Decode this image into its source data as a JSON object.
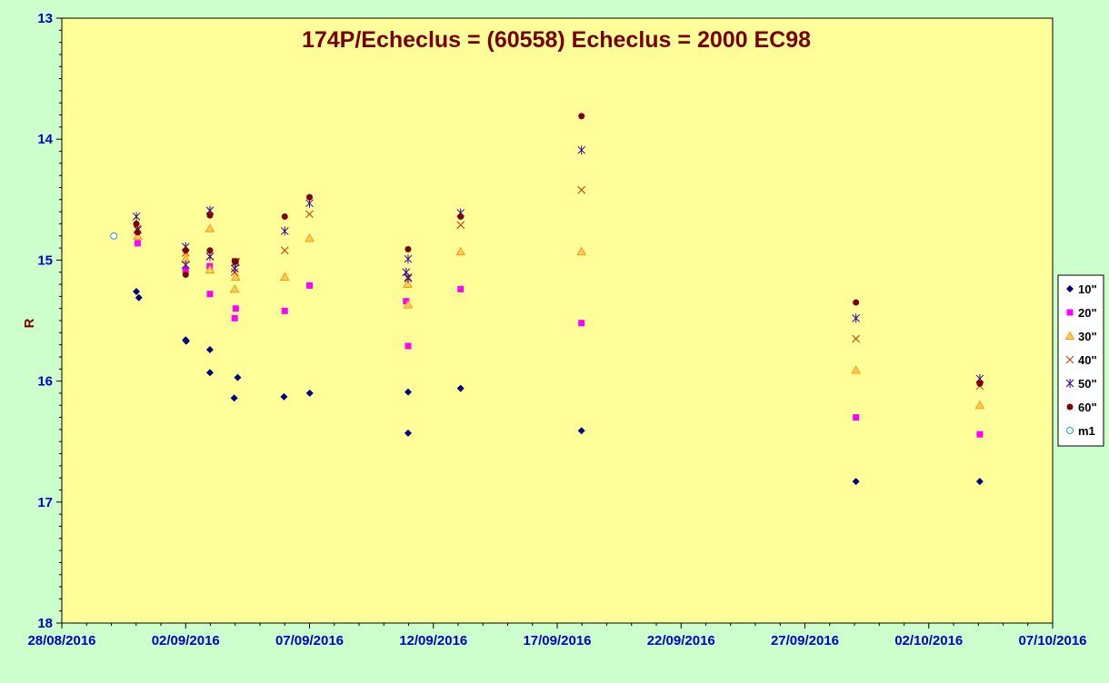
{
  "chart_data": {
    "type": "scatter",
    "title": "174P/Echeclus = (60558) Echeclus = 2000 EC98",
    "xlabel": "",
    "ylabel": "R",
    "x_axis_type": "date",
    "xlim": [
      "28/08/2016",
      "07/10/2016"
    ],
    "ylim": [
      13,
      18
    ],
    "y_inverted": true,
    "x_tick_labels": [
      "28/08/2016",
      "02/09/2016",
      "07/09/2016",
      "12/09/2016",
      "17/09/2016",
      "22/09/2016",
      "27/09/2016",
      "02/10/2016",
      "07/10/2016"
    ],
    "y_tick_labels": [
      "13",
      "14",
      "15",
      "16",
      "17",
      "18"
    ],
    "plot_background": "#ffff99",
    "grid": false,
    "legend_position": "right",
    "series": [
      {
        "name": "10\"",
        "marker": "diamond",
        "color": "#000080",
        "points": [
          [
            "31/08/2016 00:14",
            15.26
          ],
          [
            "31/08/2016 02:38",
            15.31
          ],
          [
            "02/09/2016 00:00",
            15.66
          ],
          [
            "02/09/2016 00:29",
            15.67
          ],
          [
            "02/09/2016 23:31",
            15.74
          ],
          [
            "02/09/2016 23:31",
            15.93
          ],
          [
            "03/09/2016 23:02",
            16.14
          ],
          [
            "04/09/2016 02:24",
            15.97
          ],
          [
            "05/09/2016 23:17",
            16.13
          ],
          [
            "07/09/2016 00:14",
            16.1
          ],
          [
            "10/09/2016 23:31",
            16.09
          ],
          [
            "10/09/2016 23:31",
            16.43
          ],
          [
            "13/09/2016 02:24",
            16.06
          ],
          [
            "17/09/2016 23:31",
            16.41
          ],
          [
            "29/09/2016 01:26",
            16.83
          ],
          [
            "04/10/2016 01:26",
            16.83
          ]
        ]
      },
      {
        "name": "20\"",
        "marker": "square",
        "color": "#ff00ff",
        "points": [
          [
            "31/08/2016 01:26",
            14.86
          ],
          [
            "02/09/2016 00:00",
            15.08
          ],
          [
            "02/09/2016 23:17",
            15.05
          ],
          [
            "02/09/2016 23:31",
            15.28
          ],
          [
            "03/09/2016 23:31",
            15.48
          ],
          [
            "04/09/2016 00:29",
            15.4
          ],
          [
            "06/09/2016 00:00",
            15.42
          ],
          [
            "07/09/2016 00:00",
            15.21
          ],
          [
            "10/09/2016 21:36",
            15.34
          ],
          [
            "10/09/2016 23:31",
            15.71
          ],
          [
            "13/09/2016 02:24",
            15.24
          ],
          [
            "17/09/2016 23:31",
            15.52
          ],
          [
            "29/09/2016 01:26",
            16.3
          ],
          [
            "04/10/2016 01:26",
            16.44
          ]
        ]
      },
      {
        "name": "30\"",
        "marker": "triangle",
        "color": "#ff9900",
        "points": [
          [
            "31/08/2016 01:26",
            14.8
          ],
          [
            "02/09/2016 00:00",
            14.99
          ],
          [
            "02/09/2016 23:31",
            14.74
          ],
          [
            "02/09/2016 23:31",
            15.08
          ],
          [
            "03/09/2016 23:31",
            15.24
          ],
          [
            "04/09/2016 00:29",
            15.14
          ],
          [
            "06/09/2016 00:00",
            15.14
          ],
          [
            "07/09/2016 00:00",
            14.82
          ],
          [
            "10/09/2016 23:02",
            15.2
          ],
          [
            "10/09/2016 23:31",
            15.37
          ],
          [
            "13/09/2016 02:24",
            14.93
          ],
          [
            "17/09/2016 23:31",
            14.93
          ],
          [
            "29/09/2016 01:26",
            15.91
          ],
          [
            "04/10/2016 01:26",
            16.2
          ]
        ]
      },
      {
        "name": "40\"",
        "marker": "x",
        "color": "#cc3300",
        "points": [
          [
            "31/08/2016 01:26",
            14.74
          ],
          [
            "02/09/2016 00:00",
            14.94
          ],
          [
            "02/09/2016 23:31",
            14.97
          ],
          [
            "03/09/2016 23:31",
            15.1
          ],
          [
            "04/09/2016 00:29",
            15.01
          ],
          [
            "06/09/2016 00:00",
            14.92
          ],
          [
            "07/09/2016 00:00",
            14.62
          ],
          [
            "10/09/2016 23:31",
            15.14
          ],
          [
            "13/09/2016 02:24",
            14.71
          ],
          [
            "17/09/2016 23:31",
            14.42
          ],
          [
            "29/09/2016 01:26",
            15.65
          ],
          [
            "04/10/2016 01:26",
            16.04
          ]
        ]
      },
      {
        "name": "50\"",
        "marker": "star",
        "color": "#330099",
        "points": [
          [
            "31/08/2016 00:14",
            14.64
          ],
          [
            "31/08/2016 01:26",
            14.75
          ],
          [
            "02/09/2016 00:00",
            14.89
          ],
          [
            "02/09/2016 00:00",
            15.04
          ],
          [
            "02/09/2016 23:31",
            14.59
          ],
          [
            "02/09/2016 23:31",
            14.97
          ],
          [
            "03/09/2016 23:31",
            15.07
          ],
          [
            "04/09/2016 00:29",
            15.02
          ],
          [
            "06/09/2016 00:00",
            14.76
          ],
          [
            "07/09/2016 00:00",
            14.53
          ],
          [
            "10/09/2016 21:36",
            15.1
          ],
          [
            "10/09/2016 23:31",
            14.99
          ],
          [
            "10/09/2016 23:31",
            15.15
          ],
          [
            "13/09/2016 02:24",
            14.61
          ],
          [
            "17/09/2016 23:31",
            14.09
          ],
          [
            "29/09/2016 01:26",
            15.48
          ],
          [
            "04/10/2016 01:26",
            15.98
          ]
        ]
      },
      {
        "name": "60\"",
        "marker": "circle",
        "color": "#800000",
        "points": [
          [
            "31/08/2016 00:14",
            14.7
          ],
          [
            "31/08/2016 01:26",
            14.77
          ],
          [
            "02/09/2016 00:00",
            14.92
          ],
          [
            "02/09/2016 00:00",
            15.12
          ],
          [
            "02/09/2016 23:31",
            14.63
          ],
          [
            "02/09/2016 23:31",
            14.92
          ],
          [
            "03/09/2016 23:31",
            15.01
          ],
          [
            "04/09/2016 00:29",
            15.01
          ],
          [
            "06/09/2016 00:00",
            14.64
          ],
          [
            "07/09/2016 00:00",
            14.48
          ],
          [
            "10/09/2016 23:31",
            14.91
          ],
          [
            "13/09/2016 02:24",
            14.64
          ],
          [
            "17/09/2016 23:31",
            13.81
          ],
          [
            "29/09/2016 01:26",
            15.35
          ],
          [
            "04/10/2016 01:26",
            16.02
          ]
        ]
      },
      {
        "name": "m1",
        "marker": "open-circle",
        "color": "#3399cc",
        "points": [
          [
            "30/08/2016 02:24",
            14.8
          ]
        ]
      }
    ]
  }
}
